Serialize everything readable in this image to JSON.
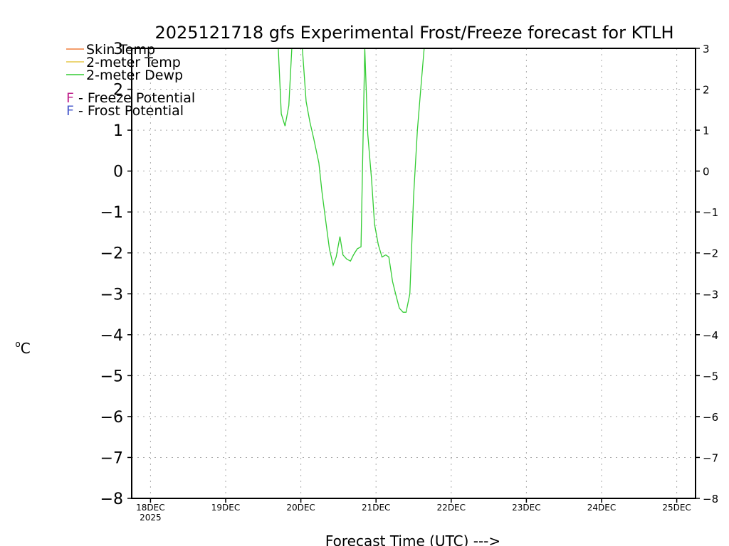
{
  "chart_data": {
    "type": "line",
    "title": "2025121718 gfs Experimental Frost/Freeze forecast for KTLH",
    "xlabel": "Forecast Time (UTC) --->",
    "ylabel": "°C",
    "ylabel_sup": "o",
    "ylabel_unit": "C",
    "ylim": [
      -8,
      3
    ],
    "yticks": [
      3,
      2,
      1,
      0,
      -1,
      -2,
      -3,
      -4,
      -5,
      -6,
      -7,
      -8
    ],
    "ytick_labels_left": [
      "3",
      "2",
      "1",
      "0",
      "−1",
      "−2",
      "−3",
      "−4",
      "−5",
      "−6",
      "−7",
      "−8"
    ],
    "ytick_labels_right": [
      "3",
      "2",
      "1",
      "0",
      "−1",
      "−2",
      "−3",
      "−4",
      "−5",
      "−6",
      "−7",
      "−8"
    ],
    "xlim": [
      -0.25,
      7.25
    ],
    "xticks": [
      0,
      1,
      2,
      3,
      4,
      5,
      6,
      7
    ],
    "xtick_labels": [
      "18DEC",
      "19DEC",
      "20DEC",
      "21DEC",
      "22DEC",
      "23DEC",
      "24DEC",
      "25DEC"
    ],
    "xtick_sublabel": "2025",
    "grid": true,
    "legend": [
      {
        "name": "Skin Temp",
        "color": "#f07f3c"
      },
      {
        "name": "2-meter Temp",
        "color": "#e6c84c"
      },
      {
        "name": "2-meter Dewp",
        "color": "#33cc33"
      }
    ],
    "potential_legend": [
      {
        "letter": "F",
        "label": " - Freeze Potential",
        "color": "#c0238c"
      },
      {
        "letter": "F",
        "label": " - Frost Potential",
        "color": "#4a5ccc"
      }
    ],
    "series": [
      {
        "name": "Skin Temp",
        "color": "#f07f3c",
        "x": [],
        "y": []
      },
      {
        "name": "2-meter Temp",
        "color": "#e6c84c",
        "x": [],
        "y": []
      },
      {
        "name": "2-meter Dewp",
        "color": "#33cc33",
        "x": [
          1.7,
          1.74,
          1.79,
          1.84,
          1.88,
          1.93,
          2.02,
          2.07,
          2.12,
          2.17,
          2.24,
          2.28,
          2.33,
          2.38,
          2.43,
          2.47,
          2.52,
          2.56,
          2.61,
          2.66,
          2.7,
          2.75,
          2.8,
          2.85,
          2.89,
          2.94,
          2.98,
          3.03,
          3.08,
          3.13,
          3.17,
          3.22,
          3.26,
          3.31,
          3.36,
          3.4,
          3.45,
          3.5,
          3.55,
          3.59,
          3.64,
          3.69,
          3.73
        ],
        "y": [
          3.0,
          1.4,
          1.1,
          1.6,
          3.0,
          3.0,
          3.0,
          1.7,
          1.2,
          0.8,
          0.2,
          -0.5,
          -1.2,
          -1.9,
          -2.3,
          -2.1,
          -1.6,
          -2.05,
          -2.15,
          -2.2,
          -2.05,
          -1.9,
          -1.85,
          3.0,
          0.9,
          -0.2,
          -1.3,
          -1.8,
          -2.1,
          -2.05,
          -2.1,
          -2.7,
          -3.0,
          -3.35,
          -3.45,
          -3.45,
          -3.0,
          -0.6,
          1.0,
          1.9,
          3.0,
          3.0,
          3.0
        ]
      }
    ]
  }
}
